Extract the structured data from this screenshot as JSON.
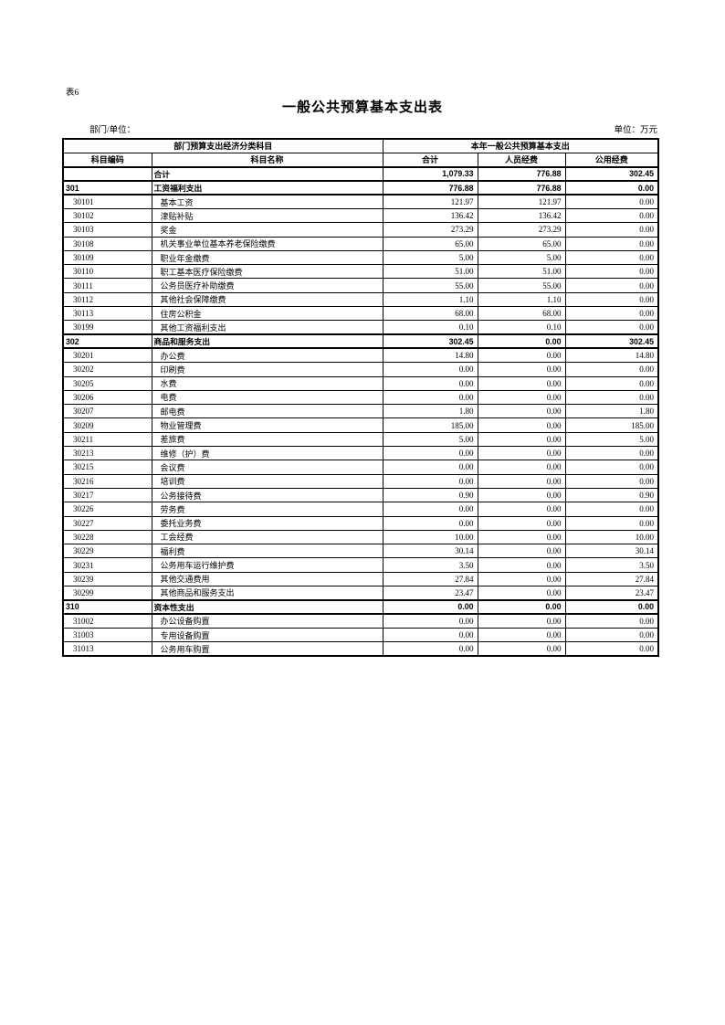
{
  "page": {
    "table_label": "表6",
    "title": "一般公共预算基本支出表",
    "dept_label": "部门/单位：",
    "unit_label": "单位：万元"
  },
  "table": {
    "header": {
      "group_classification": "部门预算支出经济分类科目",
      "group_expenditure": "本年一般公共预算基本支出",
      "col_code": "科目编码",
      "col_name": "科目名称",
      "col_total": "合计",
      "col_personnel": "人员经费",
      "col_public": "公用经费"
    },
    "rows": [
      {
        "code": "",
        "name": "合计",
        "total": "1,079.33",
        "personnel": "776.88",
        "public": "302.45",
        "section": true
      },
      {
        "code": "301",
        "name": "工资福利支出",
        "total": "776.88",
        "personnel": "776.88",
        "public": "0.00",
        "section": true
      },
      {
        "code": "30101",
        "name": "基本工资",
        "total": "121.97",
        "personnel": "121.97",
        "public": "0.00"
      },
      {
        "code": "30102",
        "name": "津贴补贴",
        "total": "136.42",
        "personnel": "136.42",
        "public": "0.00"
      },
      {
        "code": "30103",
        "name": "奖金",
        "total": "273.29",
        "personnel": "273.29",
        "public": "0.00"
      },
      {
        "code": "30108",
        "name": "机关事业单位基本养老保险缴费",
        "total": "65.00",
        "personnel": "65.00",
        "public": "0.00"
      },
      {
        "code": "30109",
        "name": "职业年金缴费",
        "total": "5.00",
        "personnel": "5.00",
        "public": "0.00"
      },
      {
        "code": "30110",
        "name": "职工基本医疗保险缴费",
        "total": "51.00",
        "personnel": "51.00",
        "public": "0.00"
      },
      {
        "code": "30111",
        "name": "公务员医疗补助缴费",
        "total": "55.00",
        "personnel": "55.00",
        "public": "0.00"
      },
      {
        "code": "30112",
        "name": "其他社会保障缴费",
        "total": "1.10",
        "personnel": "1.10",
        "public": "0.00"
      },
      {
        "code": "30113",
        "name": "住房公积金",
        "total": "68.00",
        "personnel": "68.00",
        "public": "0.00"
      },
      {
        "code": "30199",
        "name": "其他工资福利支出",
        "total": "0.10",
        "personnel": "0.10",
        "public": "0.00"
      },
      {
        "code": "302",
        "name": "商品和服务支出",
        "total": "302.45",
        "personnel": "0.00",
        "public": "302.45",
        "section": true
      },
      {
        "code": "30201",
        "name": "办公费",
        "total": "14.80",
        "personnel": "0.00",
        "public": "14.80"
      },
      {
        "code": "30202",
        "name": "印刷费",
        "total": "0.00",
        "personnel": "0.00",
        "public": "0.00"
      },
      {
        "code": "30205",
        "name": "水费",
        "total": "0.00",
        "personnel": "0.00",
        "public": "0.00"
      },
      {
        "code": "30206",
        "name": "电费",
        "total": "0.00",
        "personnel": "0.00",
        "public": "0.00"
      },
      {
        "code": "30207",
        "name": "邮电费",
        "total": "1.80",
        "personnel": "0.00",
        "public": "1.80"
      },
      {
        "code": "30209",
        "name": "物业管理费",
        "total": "185.00",
        "personnel": "0.00",
        "public": "185.00"
      },
      {
        "code": "30211",
        "name": "差旅费",
        "total": "5.00",
        "personnel": "0.00",
        "public": "5.00"
      },
      {
        "code": "30213",
        "name": "维修（护）费",
        "total": "0.00",
        "personnel": "0.00",
        "public": "0.00"
      },
      {
        "code": "30215",
        "name": "会议费",
        "total": "0.00",
        "personnel": "0.00",
        "public": "0.00"
      },
      {
        "code": "30216",
        "name": "培训费",
        "total": "0.00",
        "personnel": "0.00",
        "public": "0.00"
      },
      {
        "code": "30217",
        "name": "公务接待费",
        "total": "0.90",
        "personnel": "0.00",
        "public": "0.90"
      },
      {
        "code": "30226",
        "name": "劳务费",
        "total": "0.00",
        "personnel": "0.00",
        "public": "0.00"
      },
      {
        "code": "30227",
        "name": "委托业务费",
        "total": "0.00",
        "personnel": "0.00",
        "public": "0.00"
      },
      {
        "code": "30228",
        "name": "工会经费",
        "total": "10.00",
        "personnel": "0.00",
        "public": "10.00"
      },
      {
        "code": "30229",
        "name": "福利费",
        "total": "30.14",
        "personnel": "0.00",
        "public": "30.14"
      },
      {
        "code": "30231",
        "name": "公务用车运行维护费",
        "total": "3.50",
        "personnel": "0.00",
        "public": "3.50"
      },
      {
        "code": "30239",
        "name": "其他交通费用",
        "total": "27.84",
        "personnel": "0.00",
        "public": "27.84"
      },
      {
        "code": "30299",
        "name": "其他商品和服务支出",
        "total": "23.47",
        "personnel": "0.00",
        "public": "23.47"
      },
      {
        "code": "310",
        "name": "资本性支出",
        "total": "0.00",
        "personnel": "0.00",
        "public": "0.00",
        "section": true
      },
      {
        "code": "31002",
        "name": "办公设备购置",
        "total": "0.00",
        "personnel": "0.00",
        "public": "0.00"
      },
      {
        "code": "31003",
        "name": "专用设备购置",
        "total": "0.00",
        "personnel": "0.00",
        "public": "0.00"
      },
      {
        "code": "31013",
        "name": "公务用车购置",
        "total": "0.00",
        "personnel": "0.00",
        "public": "0.00"
      }
    ]
  }
}
